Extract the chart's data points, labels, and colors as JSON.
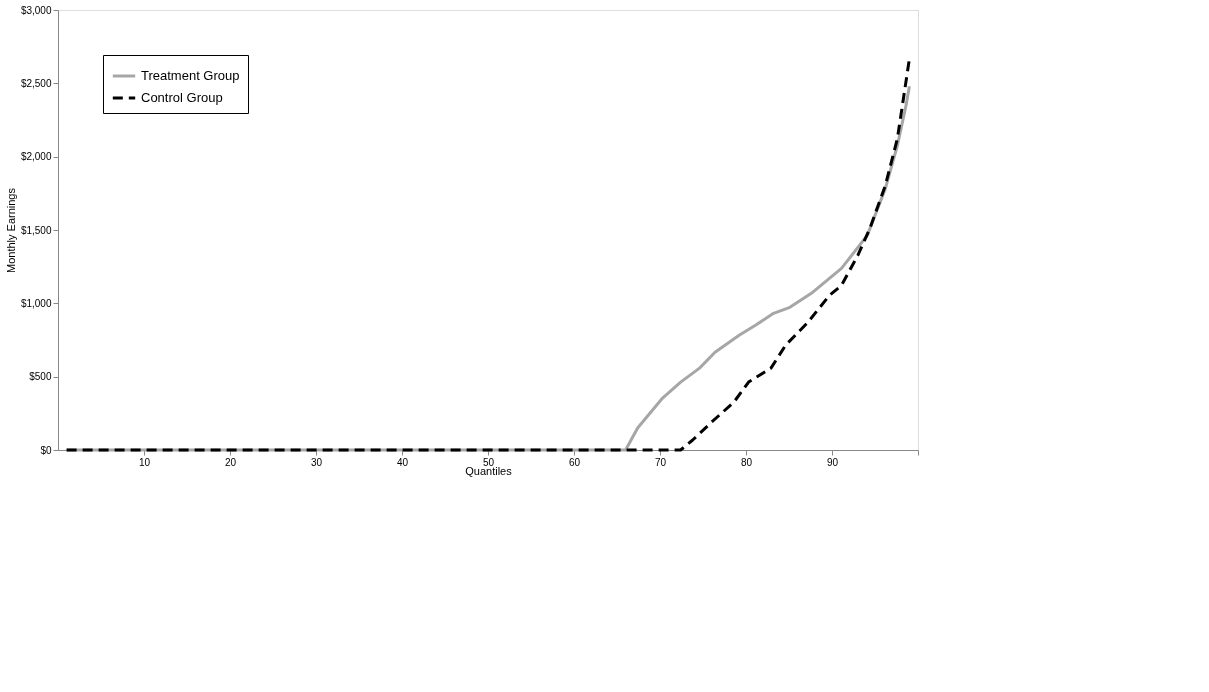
{
  "chart_data": {
    "type": "line",
    "xlabel": "Quantiles",
    "ylabel": "Monthly Earnings",
    "xlim": [
      0,
      100
    ],
    "ylim": [
      0,
      3000
    ],
    "xticks": [
      10,
      20,
      30,
      40,
      50,
      60,
      70,
      80,
      90,
      {
        "value": 100,
        "label": null
      }
    ],
    "yticks": [
      {
        "value": 0,
        "label": "$0"
      },
      {
        "value": 500,
        "label": "$500"
      },
      {
        "value": 1000,
        "label": "$1,000"
      },
      {
        "value": 1500,
        "label": "$1,500"
      },
      {
        "value": 2000,
        "label": "$2,000"
      },
      {
        "value": 2500,
        "label": "$2,500"
      },
      {
        "value": 3000,
        "label": "$3,000"
      }
    ],
    "grid": false,
    "legend": "top left",
    "marker": "none",
    "series": [
      {
        "name": "Treatment Group",
        "color": "#a6a6a6",
        "line_style": "solid",
        "x": [
          1,
          66,
          67.4,
          70.3,
          72.4,
          74.6,
          76.4,
          79.2,
          81.1,
          83.2,
          85.1,
          87.6,
          91.1,
          94.1,
          96.2,
          97.6,
          98.6,
          99
        ],
        "values": [
          0,
          0,
          150,
          354,
          463,
          558,
          667,
          782,
          850,
          932,
          973,
          1068,
          1238,
          1463,
          1782,
          2075,
          2347,
          2480
        ]
      },
      {
        "name": "Control Group",
        "color": "#000000",
        "line_style": "dashed",
        "x": [
          1,
          72.4,
          73.8,
          76,
          78.6,
          80.3,
          82.9,
          84.6,
          87.2,
          89.7,
          91.1,
          93,
          94.4,
          96.2,
          97.6,
          99
        ],
        "values": [
          0,
          0,
          68,
          190,
          327,
          463,
          558,
          714,
          871,
          1054,
          1122,
          1327,
          1510,
          1803,
          2122,
          2667
        ]
      }
    ]
  }
}
